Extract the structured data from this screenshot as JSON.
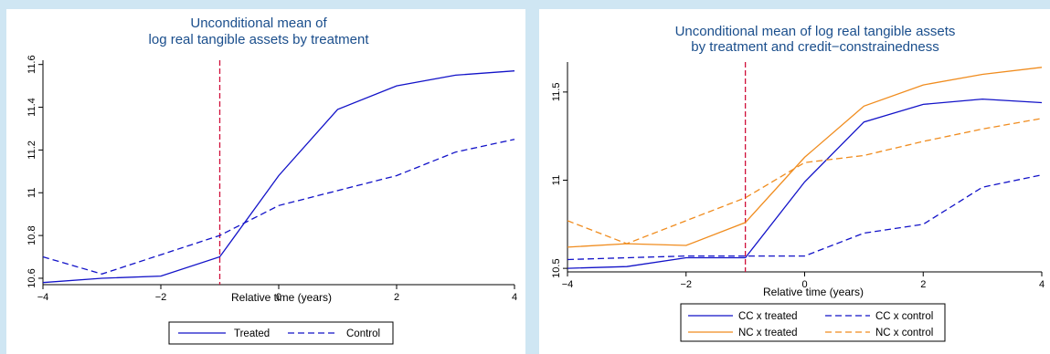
{
  "colors": {
    "background": "#cfe6f3",
    "title": "#1a4e8c",
    "navy": "#1212c8",
    "orange": "#f08c1e",
    "vline": "#d0103a"
  },
  "chart_data": [
    {
      "type": "line",
      "title": [
        "Unconditional mean of",
        "log real tangible assets by treatment"
      ],
      "xlabel": "Relative time (years)",
      "ylabel": "",
      "x": [
        -4,
        -3,
        -2,
        -1,
        0,
        1,
        2,
        3,
        4
      ],
      "xlim": [
        -4,
        4
      ],
      "ylim": [
        10.57,
        11.62
      ],
      "xticks": [
        -4,
        -2,
        0,
        2,
        4
      ],
      "xtick_labels": [
        "−4",
        "−2",
        "0",
        "2",
        "4"
      ],
      "yticks": [
        10.6,
        10.8,
        11,
        11.2,
        11.4,
        11.6
      ],
      "ytick_labels": [
        "10.6",
        "10.8",
        "11",
        "11.2",
        "11.4",
        "11.6"
      ],
      "vline": -1,
      "grid": false,
      "legend_position": "bottom",
      "series": [
        {
          "name": "Treated",
          "values": [
            10.58,
            10.6,
            10.61,
            10.7,
            11.08,
            11.39,
            11.5,
            11.55,
            11.57
          ],
          "color": "navy",
          "dash": "solid"
        },
        {
          "name": "Control",
          "values": [
            10.7,
            10.62,
            10.71,
            10.8,
            10.94,
            11.01,
            11.08,
            11.19,
            11.25
          ],
          "color": "navy",
          "dash": "dashed"
        }
      ]
    },
    {
      "type": "line",
      "title": [
        "Unconditional mean of log real tangible assets",
        "by treatment and credit−constrainedness"
      ],
      "xlabel": "Relative time (years)",
      "ylabel": "",
      "x": [
        -4,
        -3,
        -2,
        -1,
        0,
        1,
        2,
        3,
        4
      ],
      "xlim": [
        -4,
        4
      ],
      "ylim": [
        10.48,
        11.67
      ],
      "xticks": [
        -4,
        -2,
        0,
        2,
        4
      ],
      "xtick_labels": [
        "−4",
        "−2",
        "0",
        "2",
        "4"
      ],
      "yticks": [
        10.5,
        11,
        11.5
      ],
      "ytick_labels": [
        "10.5",
        "11",
        "11.5"
      ],
      "vline": -1,
      "grid": false,
      "legend_position": "bottom",
      "series": [
        {
          "name": "CC x treated",
          "values": [
            10.5,
            10.51,
            10.56,
            10.56,
            10.99,
            11.33,
            11.43,
            11.46,
            11.44
          ],
          "color": "navy",
          "dash": "solid"
        },
        {
          "name": "CC x control",
          "values": [
            10.55,
            10.56,
            10.57,
            10.57,
            10.57,
            10.7,
            10.75,
            10.96,
            11.03
          ],
          "color": "navy",
          "dash": "dashed"
        },
        {
          "name": "NC x treated",
          "values": [
            10.62,
            10.64,
            10.63,
            10.76,
            11.13,
            11.42,
            11.54,
            11.6,
            11.64
          ],
          "color": "orange",
          "dash": "solid"
        },
        {
          "name": "NC x control",
          "values": [
            10.77,
            10.64,
            10.77,
            10.9,
            11.1,
            11.14,
            11.22,
            11.29,
            11.35
          ],
          "color": "orange",
          "dash": "dashed"
        }
      ]
    }
  ]
}
